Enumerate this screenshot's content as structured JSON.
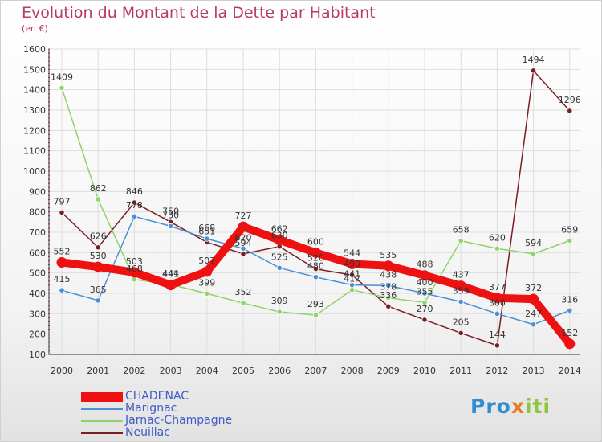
{
  "header": {
    "title": "Evolution du Montant de la Dette par Habitant",
    "subtitle": "(en €)"
  },
  "chart_data": {
    "type": "line",
    "title": "Evolution du Montant de la Dette par Habitant",
    "subtitle": "(en €)",
    "xlabel": "",
    "ylabel": "",
    "ylim": [
      100,
      1600
    ],
    "yticks": [
      100,
      200,
      300,
      400,
      500,
      600,
      700,
      800,
      900,
      1000,
      1100,
      1200,
      1300,
      1400,
      1500,
      1600
    ],
    "x": [
      "2000",
      "2001",
      "2002",
      "2003",
      "2004",
      "2005",
      "2006",
      "2007",
      "2008",
      "2009",
      "2010",
      "2011",
      "2012",
      "2013",
      "2014"
    ],
    "grid": true,
    "legend": "bottom-left",
    "series": [
      {
        "name": "CHADENAC",
        "color": "#ee1111",
        "values": [
          552,
          530,
          503,
          441,
          507,
          727,
          662,
          600,
          544,
          535,
          488,
          437,
          377,
          372,
          152
        ],
        "labels": [
          "552",
          "530",
          "503",
          "441",
          "507",
          "727",
          "662",
          "600",
          "544",
          "535",
          "488",
          "437",
          "377",
          "372",
          "152"
        ]
      },
      {
        "name": "Marignac",
        "color": "#4a90d2",
        "values": [
          415,
          365,
          778,
          730,
          668,
          620,
          525,
          480,
          441,
          438,
          400,
          359,
          300,
          247,
          316
        ],
        "labels": [
          "415",
          "365",
          "778",
          "730",
          "668",
          "620",
          "525",
          "480",
          "441",
          "438",
          "400",
          "359",
          "300",
          "247",
          "316"
        ]
      },
      {
        "name": "Jarnac-Champagne",
        "color": "#8ed46a",
        "values": [
          1409,
          862,
          468,
          444,
          399,
          352,
          309,
          293,
          417,
          378,
          355,
          658,
          620,
          594,
          659
        ],
        "labels": [
          "1409",
          "862",
          "468",
          "444",
          "399",
          "352",
          "309",
          "293",
          "417",
          "378",
          "355",
          "658",
          "620",
          "594",
          "659"
        ]
      },
      {
        "name": "Neuillac",
        "color": "#7a1f24",
        "values": [
          797,
          626,
          846,
          750,
          651,
          594,
          630,
          520,
          490,
          336,
          270,
          205,
          144,
          1494,
          1296
        ],
        "labels": [
          "797",
          "626",
          "846",
          "750",
          "651",
          "594",
          "630",
          "520",
          "490",
          "336",
          "270",
          "205",
          "144",
          "1494",
          "1296"
        ]
      }
    ]
  },
  "legend": {
    "items": [
      {
        "label": "CHADENAC",
        "color": "#ee1111"
      },
      {
        "label": "Marignac",
        "color": "#4a90d2"
      },
      {
        "label": "Jarnac-Champagne",
        "color": "#8ed46a"
      },
      {
        "label": "Neuillac",
        "color": "#7a1f24"
      }
    ]
  },
  "logo": {
    "part1": "Pro",
    "part2": "x",
    "part3": "iti"
  }
}
